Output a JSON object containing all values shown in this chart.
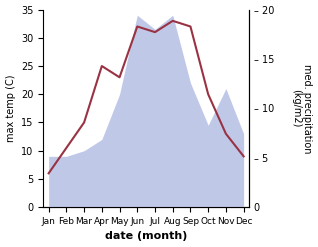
{
  "months": [
    "Jan",
    "Feb",
    "Mar",
    "Apr",
    "May",
    "Jun",
    "Jul",
    "Aug",
    "Sep",
    "Oct",
    "Nov",
    "Dec"
  ],
  "temperature": [
    6,
    10.5,
    15,
    25,
    23,
    32,
    31,
    33,
    32,
    20,
    13,
    9
  ],
  "precipitation": [
    9,
    9,
    10,
    12,
    20,
    34,
    31.5,
    34,
    22,
    14.5,
    21,
    13
  ],
  "temp_color": "#993344",
  "precip_color": "#c0c8e8",
  "temp_ylim": [
    0,
    35
  ],
  "precip_ylim": [
    0,
    35
  ],
  "right_ylim": [
    0,
    20
  ],
  "right_yticks": [
    0,
    5,
    10,
    15,
    20
  ],
  "temp_yticks": [
    0,
    5,
    10,
    15,
    20,
    25,
    30,
    35
  ],
  "xlabel": "date (month)",
  "ylabel_left": "max temp (C)",
  "ylabel_right": "med. precipitation\n(kg/m2)"
}
